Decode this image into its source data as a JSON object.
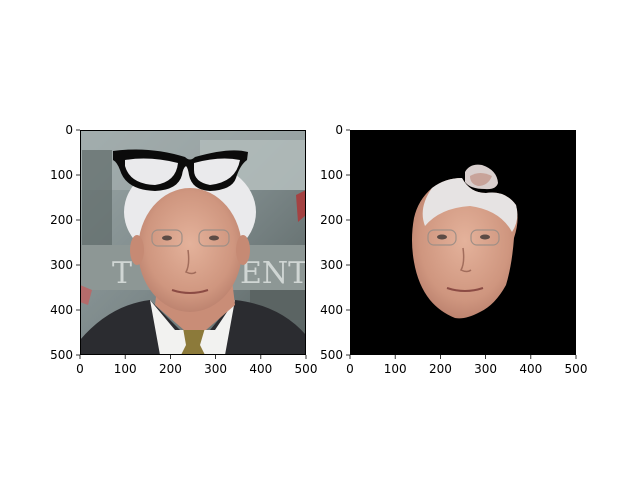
{
  "chart_data": [
    {
      "type": "image",
      "xlim": [
        0,
        500
      ],
      "ylim": [
        500,
        0
      ],
      "xticks": [
        0,
        100,
        200,
        300,
        400,
        500
      ],
      "yticks": [
        0,
        100,
        200,
        300,
        400,
        500
      ],
      "xtick_labels": [
        "0",
        "100",
        "200",
        "300",
        "400",
        "500"
      ],
      "ytick_labels": [
        "0",
        "100",
        "200",
        "300",
        "400",
        "500"
      ],
      "content": "photo of an older man with white hair, glasses overlay above the head"
    },
    {
      "type": "image",
      "xlim": [
        0,
        500
      ],
      "ylim": [
        500,
        0
      ],
      "xticks": [
        0,
        100,
        200,
        300,
        400,
        500
      ],
      "yticks": [
        0,
        100,
        200,
        300,
        400,
        500
      ],
      "xtick_labels": [
        "0",
        "100",
        "200",
        "300",
        "400",
        "500"
      ],
      "ytick_labels": [
        "0",
        "100",
        "200",
        "300",
        "400",
        "500"
      ],
      "content": "segmented face region on black background"
    }
  ],
  "colors": {
    "background": "#ffffff",
    "mask": "#000000",
    "skin": "#d9a48e",
    "hair": "#e9e9ec",
    "suit": "#2b2c30",
    "shirt": "#f1f1f1",
    "glasses": "#0b0b0b",
    "photo_bg": "#7f8a8e"
  }
}
